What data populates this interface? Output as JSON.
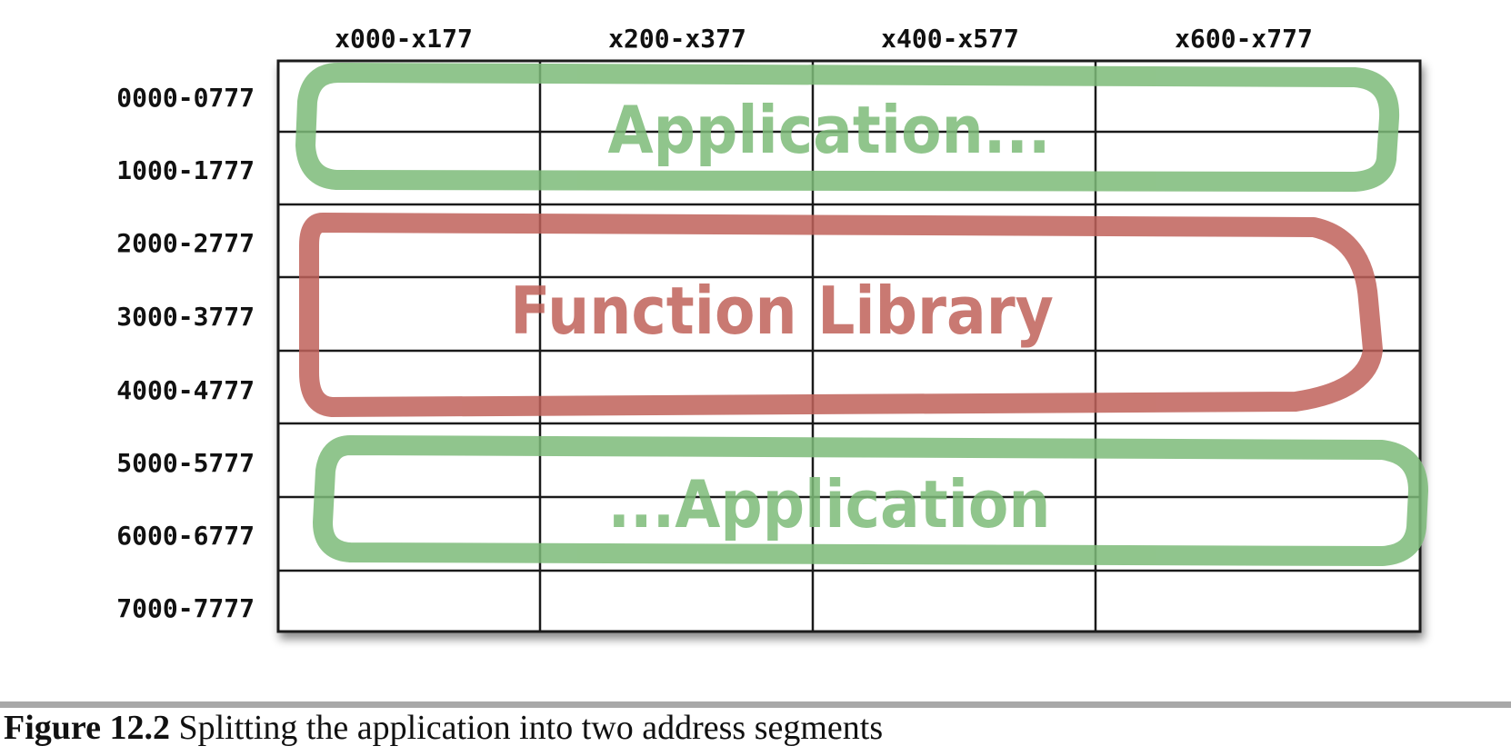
{
  "diagram": {
    "column_labels": [
      "x000-x177",
      "x200-x377",
      "x400-x577",
      "x600-x777"
    ],
    "row_labels": [
      "0000-0777",
      "1000-1777",
      "2000-2777",
      "3000-3777",
      "4000-4777",
      "5000-5777",
      "6000-6777",
      "7000-7777"
    ],
    "regions": [
      {
        "label": "Application...",
        "color": "#7dbb79"
      },
      {
        "label": "Function Library",
        "color": "#c0625a"
      },
      {
        "label": "...Application",
        "color": "#7dbb79"
      }
    ]
  },
  "caption": {
    "number": "Figure 12.2",
    "text": " Splitting the application into two address segments"
  }
}
